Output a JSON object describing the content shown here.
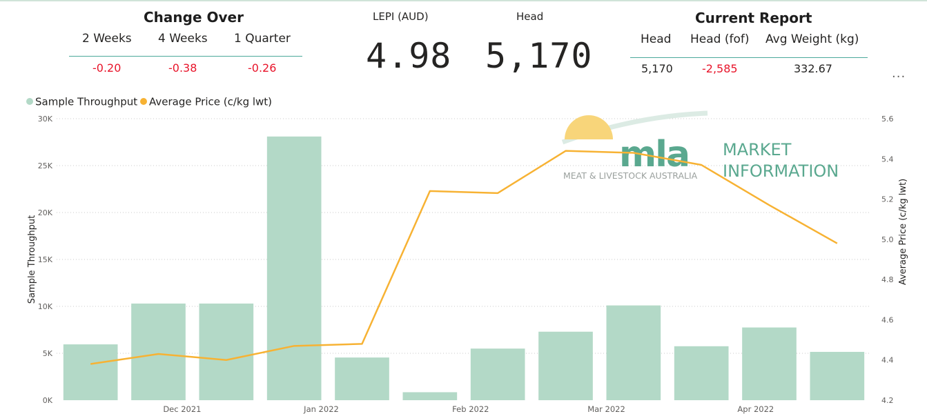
{
  "change_over": {
    "title": "Change Over",
    "columns": [
      "2 Weeks",
      "4 Weeks",
      "1 Quarter"
    ],
    "values": [
      "-0.20",
      "-0.38",
      "-0.26"
    ]
  },
  "kpi": {
    "lepi_label": "LEPI (AUD)",
    "lepi_value": "4.98",
    "head_label": "Head",
    "head_value": "5,170"
  },
  "current_report": {
    "title": "Current Report",
    "columns": [
      "Head",
      "Head (fof)",
      "Avg Weight (kg)"
    ],
    "values": [
      "5,170",
      "-2,585",
      "332.67"
    ]
  },
  "more_options": "...",
  "logo": {
    "mla": "mla",
    "tagline": "MEAT & LIVESTOCK AUSTRALIA",
    "market_line1": "MARKET",
    "market_line2": "INFORMATION"
  },
  "colors": {
    "bar": "#b3d9c7",
    "line": "#f7b233",
    "negative": "#e8142a",
    "logo_green": "#5aa88f"
  },
  "chart_data": {
    "type": "bar+line",
    "legend": [
      "Sample Throughput",
      "Average Price (c/kg lwt)"
    ],
    "legend_position": "top-left",
    "ylabel": "Sample Throughput",
    "y2label": "Average Price (c/kg lwt)",
    "ylim": [
      0,
      30000
    ],
    "y2lim": [
      4.2,
      5.6
    ],
    "y_ticks": [
      "0K",
      "5K",
      "10K",
      "15K",
      "20K",
      "25K",
      "30K"
    ],
    "y2_ticks": [
      "4.2",
      "4.4",
      "4.6",
      "4.8",
      "5.0",
      "5.2",
      "5.4",
      "5.6"
    ],
    "x_ticks": [
      "Dec 2021",
      "Jan 2022",
      "Feb 2022",
      "Mar 2022",
      "Apr 2022"
    ],
    "grid": true,
    "series": [
      {
        "name": "Sample Throughput",
        "type": "bar",
        "values": [
          5950,
          10300,
          10300,
          28100,
          4550,
          850,
          5500,
          7300,
          10100,
          5750,
          7750,
          5150
        ]
      },
      {
        "name": "Average Price (c/kg lwt)",
        "type": "line",
        "values": [
          4.38,
          4.43,
          4.4,
          4.47,
          4.48,
          5.24,
          5.23,
          5.44,
          5.43,
          5.37,
          5.17,
          4.98
        ]
      }
    ]
  }
}
